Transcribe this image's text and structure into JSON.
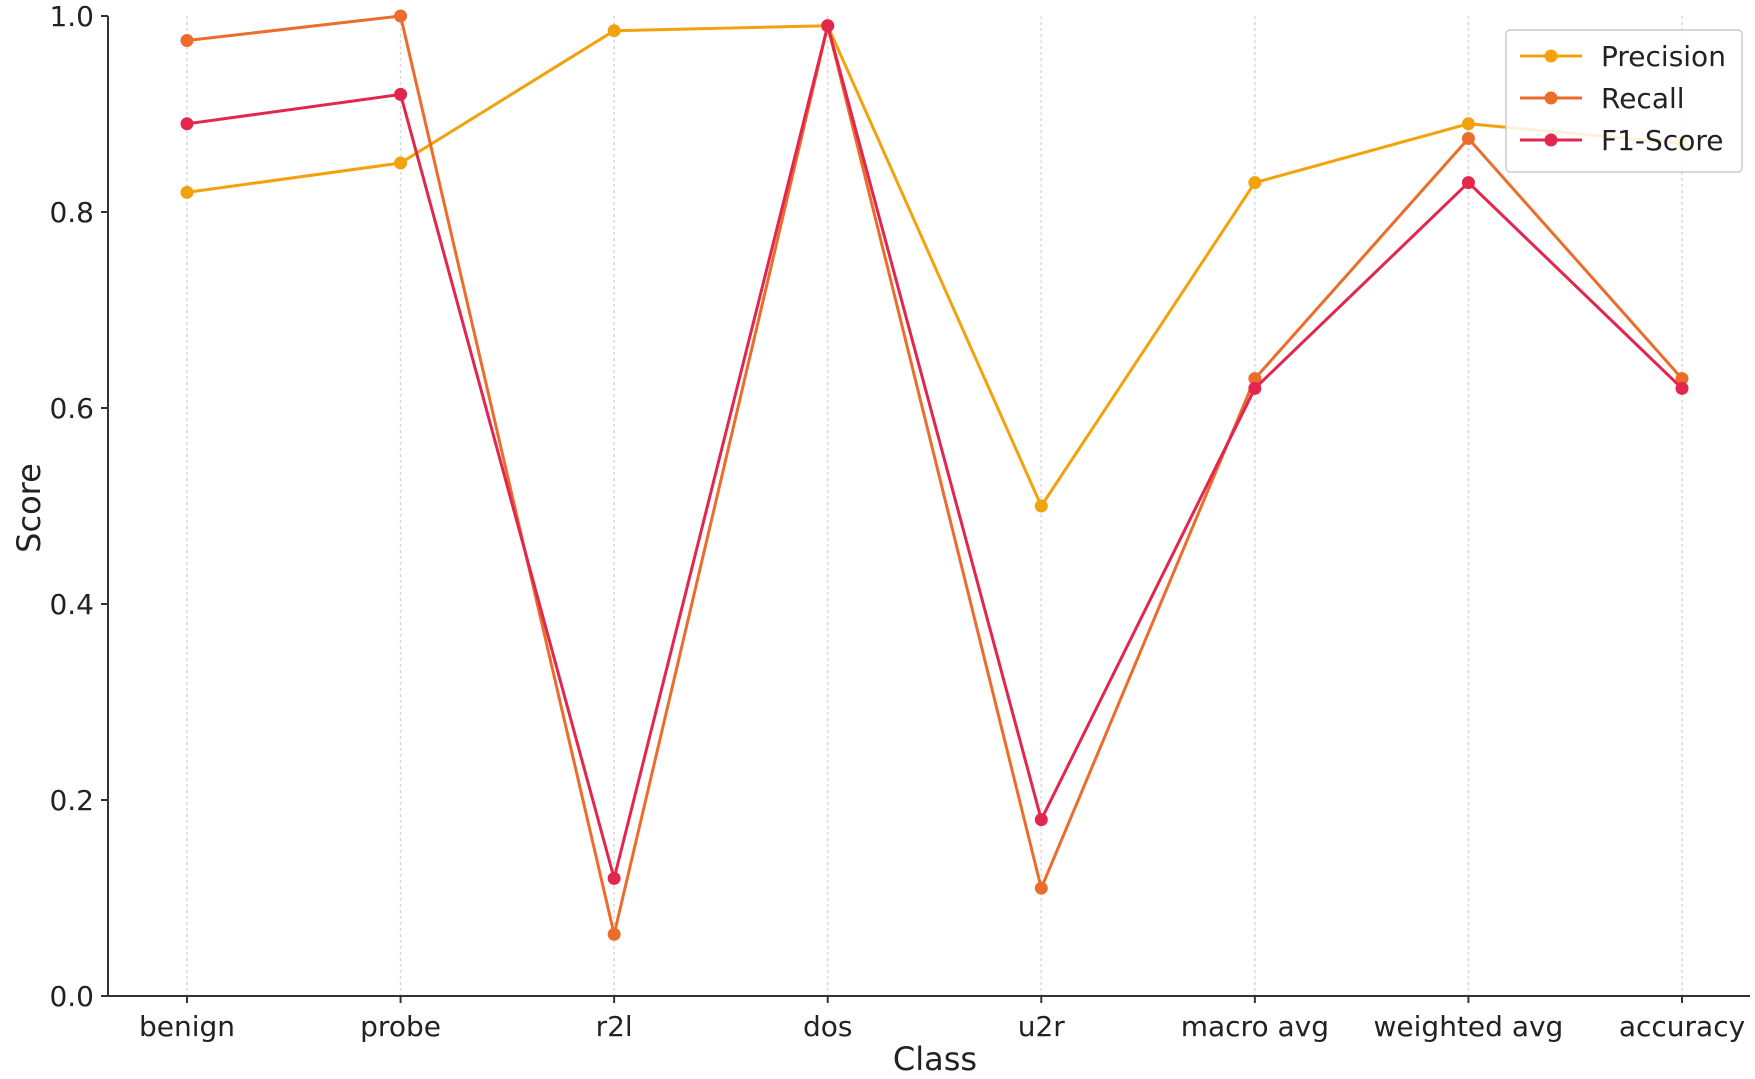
{
  "chart_data": {
    "type": "line",
    "title": "",
    "xlabel": "Class",
    "ylabel": "Score",
    "ylim": [
      0.0,
      1.0
    ],
    "yticks": [
      "0.0",
      "0.2",
      "0.4",
      "0.6",
      "0.8",
      "1.0"
    ],
    "grid": "vertical",
    "legend_placement": "top-right",
    "categories": [
      "benign",
      "probe",
      "r2l",
      "dos",
      "u2r",
      "macro avg",
      "weighted avg",
      "accuracy"
    ],
    "series": [
      {
        "name": "Precision",
        "color": "#f2a20c",
        "values": [
          0.82,
          0.85,
          0.985,
          0.99,
          0.5,
          0.83,
          0.89,
          0.87
        ]
      },
      {
        "name": "Recall",
        "color": "#ec6d2b",
        "values": [
          0.975,
          1.0,
          0.063,
          0.99,
          0.11,
          0.63,
          0.875,
          0.63
        ]
      },
      {
        "name": "F1-Score",
        "color": "#e2264e",
        "values": [
          0.89,
          0.92,
          0.12,
          0.99,
          0.18,
          0.62,
          0.83,
          0.62
        ]
      }
    ]
  }
}
